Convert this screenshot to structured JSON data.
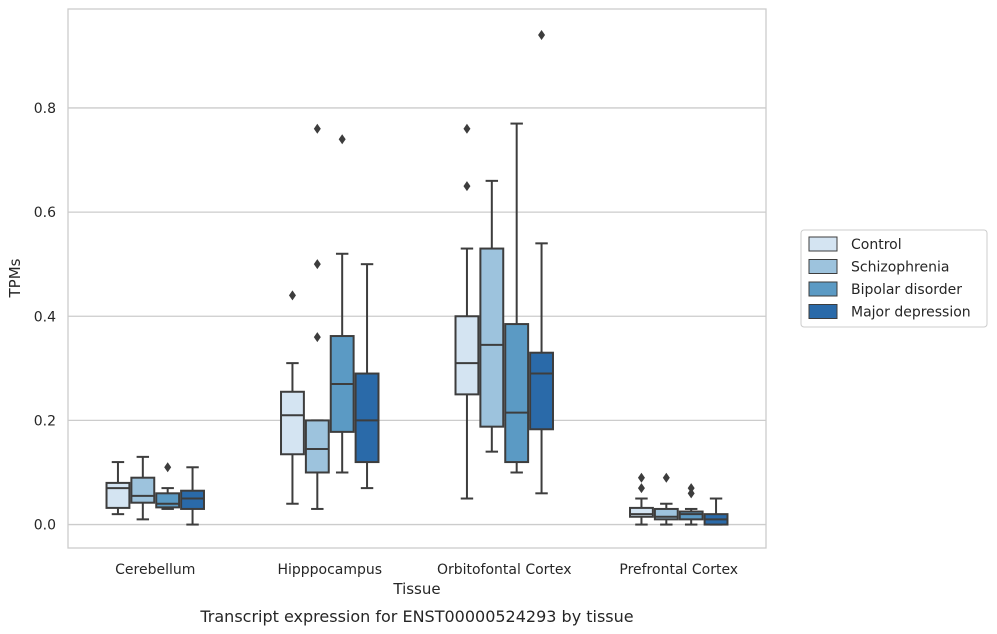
{
  "caption": "Transcript expression for ENST00000524293 by tissue",
  "chart_data": {
    "type": "box",
    "xlabel": "Tissue",
    "ylabel": "TPMs",
    "ylim": [
      -0.045,
      0.99
    ],
    "yticks": [
      0.0,
      0.2,
      0.4,
      0.6,
      0.8
    ],
    "ytick_labels": [
      "0.0",
      "0.2",
      "0.4",
      "0.6",
      "0.8"
    ],
    "grid": "horizontal",
    "legend_position": "right",
    "categories": [
      "Cerebellum",
      "Hipppocampus",
      "Orbitofontal Cortex",
      "Prefrontal Cortex"
    ],
    "series": [
      {
        "name": "Control",
        "color": "#d4e4f2",
        "boxes": [
          {
            "whislo": 0.02,
            "q1": 0.032,
            "med": 0.07,
            "q3": 0.08,
            "whishi": 0.12,
            "fliers": []
          },
          {
            "whislo": 0.04,
            "q1": 0.135,
            "med": 0.21,
            "q3": 0.255,
            "whishi": 0.31,
            "fliers": [
              0.44
            ]
          },
          {
            "whislo": 0.05,
            "q1": 0.25,
            "med": 0.31,
            "q3": 0.4,
            "whishi": 0.53,
            "fliers": [
              0.65,
              0.76
            ]
          },
          {
            "whislo": 0.0,
            "q1": 0.015,
            "med": 0.02,
            "q3": 0.032,
            "whishi": 0.05,
            "fliers": [
              0.07,
              0.09
            ]
          }
        ]
      },
      {
        "name": "Schizophrenia",
        "color": "#9dc3dd",
        "boxes": [
          {
            "whislo": 0.01,
            "q1": 0.042,
            "med": 0.055,
            "q3": 0.09,
            "whishi": 0.13,
            "fliers": []
          },
          {
            "whislo": 0.03,
            "q1": 0.1,
            "med": 0.145,
            "q3": 0.2,
            "whishi": 0.2,
            "fliers": [
              0.36,
              0.5,
              0.76
            ]
          },
          {
            "whislo": 0.14,
            "q1": 0.188,
            "med": 0.345,
            "q3": 0.53,
            "whishi": 0.66,
            "fliers": []
          },
          {
            "whislo": 0.0,
            "q1": 0.01,
            "med": 0.015,
            "q3": 0.03,
            "whishi": 0.04,
            "fliers": [
              0.09
            ]
          }
        ]
      },
      {
        "name": "Bipolar disorder",
        "color": "#5b9ac4",
        "boxes": [
          {
            "whislo": 0.03,
            "q1": 0.033,
            "med": 0.04,
            "q3": 0.06,
            "whishi": 0.07,
            "fliers": [
              0.11
            ]
          },
          {
            "whislo": 0.1,
            "q1": 0.178,
            "med": 0.27,
            "q3": 0.362,
            "whishi": 0.52,
            "fliers": [
              0.74
            ]
          },
          {
            "whislo": 0.1,
            "q1": 0.12,
            "med": 0.215,
            "q3": 0.385,
            "whishi": 0.77,
            "fliers": []
          },
          {
            "whislo": 0.0,
            "q1": 0.01,
            "med": 0.02,
            "q3": 0.025,
            "whishi": 0.03,
            "fliers": [
              0.06,
              0.07
            ]
          }
        ]
      },
      {
        "name": "Major depression",
        "color": "#2a6aa9",
        "boxes": [
          {
            "whislo": 0.0,
            "q1": 0.03,
            "med": 0.05,
            "q3": 0.065,
            "whishi": 0.11,
            "fliers": []
          },
          {
            "whislo": 0.07,
            "q1": 0.12,
            "med": 0.2,
            "q3": 0.29,
            "whishi": 0.5,
            "fliers": []
          },
          {
            "whislo": 0.06,
            "q1": 0.183,
            "med": 0.29,
            "q3": 0.33,
            "whishi": 0.54,
            "fliers": [
              0.94
            ]
          },
          {
            "whislo": 0.0,
            "q1": 0.0,
            "med": 0.01,
            "q3": 0.02,
            "whishi": 0.05,
            "fliers": []
          }
        ]
      }
    ]
  }
}
